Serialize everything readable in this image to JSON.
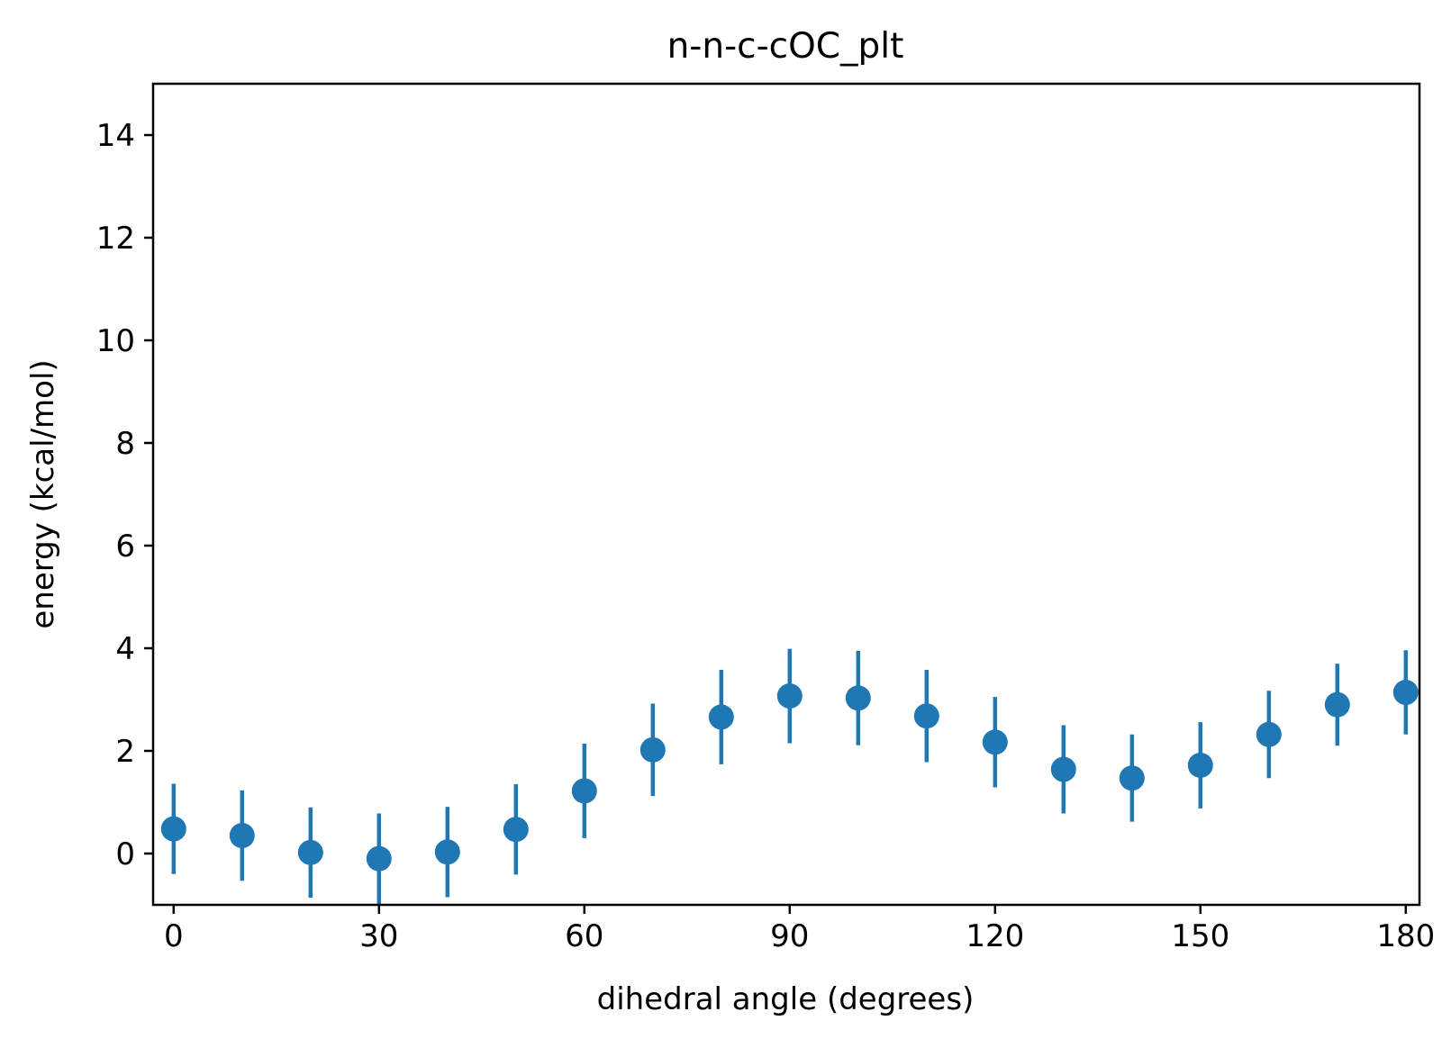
{
  "chart_data": {
    "type": "scatter",
    "title": "n-n-c-cOC_plt",
    "xlabel": "dihedral angle (degrees)",
    "ylabel": "energy (kcal/mol)",
    "xlim": [
      -3,
      182
    ],
    "ylim": [
      -1,
      15
    ],
    "xticks": [
      0,
      30,
      60,
      90,
      120,
      150,
      180
    ],
    "xtick_labels": [
      "0",
      "30",
      "60",
      "90",
      "120",
      "150",
      "180"
    ],
    "yticks": [
      0,
      2,
      4,
      6,
      8,
      10,
      12,
      14
    ],
    "ytick_labels": [
      "0",
      "2",
      "4",
      "6",
      "8",
      "10",
      "12",
      "14"
    ],
    "grid": false,
    "color": "#1f77b4",
    "series": [
      {
        "x": [
          0,
          10,
          20,
          30,
          40,
          50,
          60,
          70,
          80,
          90,
          100,
          110,
          120,
          130,
          140,
          150,
          160,
          170,
          180
        ],
        "y": [
          0.48,
          0.35,
          0.02,
          -0.1,
          0.03,
          0.47,
          1.22,
          2.02,
          2.66,
          3.07,
          3.03,
          2.68,
          2.17,
          1.64,
          1.47,
          1.72,
          2.32,
          2.9,
          3.14
        ],
        "yerr": [
          0.88,
          0.88,
          0.88,
          0.88,
          0.88,
          0.88,
          0.92,
          0.9,
          0.92,
          0.92,
          0.92,
          0.9,
          0.88,
          0.86,
          0.85,
          0.84,
          0.85,
          0.8,
          0.82
        ]
      }
    ]
  }
}
